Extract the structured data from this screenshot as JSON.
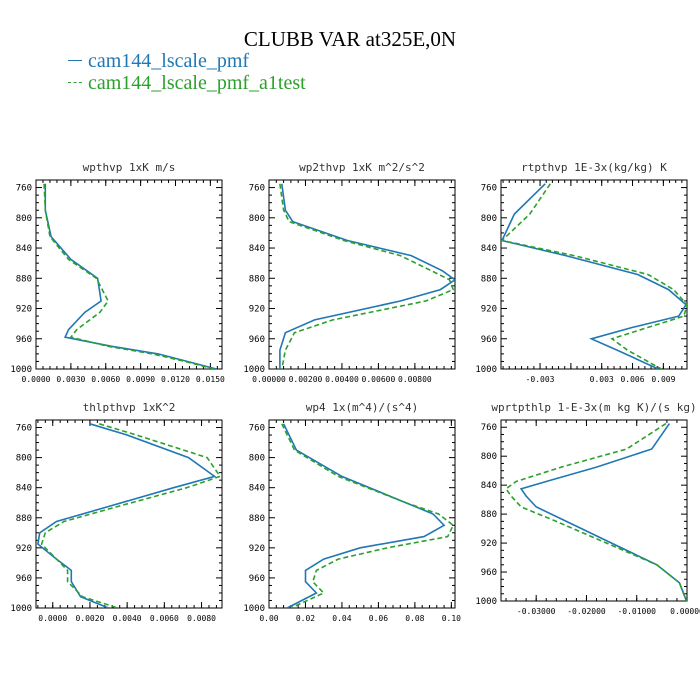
{
  "title": "CLUBB VAR at325E,0N",
  "legend": [
    {
      "label": "cam144_lscale_pmf",
      "color": "#1f77b4",
      "dash": "solid"
    },
    {
      "label": "cam144_lscale_pmf_a1test",
      "color": "#2ca02c",
      "dash": "dashed"
    }
  ],
  "chart_data": [
    {
      "type": "line",
      "title": "wpthvp  1xK m/s",
      "xlim": [
        0,
        0.016
      ],
      "ylim": [
        1000,
        750
      ],
      "xticks": [
        0,
        0.003,
        0.006,
        0.009,
        0.012,
        0.015
      ],
      "xtick_labels": [
        "0.0000",
        "0.0030",
        "0.0060",
        "0.0090",
        "0.0120",
        "0.0150"
      ],
      "xminor": 0.0006,
      "yticks": [
        760,
        800,
        840,
        880,
        920,
        960,
        1000
      ],
      "y": [
        755,
        790,
        825,
        855,
        880,
        910,
        925,
        948,
        958,
        970,
        980,
        990,
        1000
      ],
      "series": [
        {
          "name": "cam144_lscale_pmf",
          "values": [
            0.0008,
            0.0008,
            0.0013,
            0.003,
            0.0053,
            0.0056,
            0.0042,
            0.0028,
            0.0025,
            0.0065,
            0.0105,
            0.013,
            0.0155
          ]
        },
        {
          "name": "cam144_lscale_pmf_a1test",
          "values": [
            0.0007,
            0.0008,
            0.0012,
            0.0028,
            0.0052,
            0.0062,
            0.0055,
            0.0035,
            0.003,
            0.0062,
            0.01,
            0.0128,
            0.0153
          ]
        }
      ]
    },
    {
      "type": "line",
      "title": "wp2thvp  1xK m^2/s^2",
      "xlim": [
        0,
        0.0102
      ],
      "ylim": [
        1000,
        750
      ],
      "xticks": [
        0,
        0.002,
        0.004,
        0.006,
        0.008
      ],
      "xtick_labels": [
        "0.00000",
        "0.00200",
        "0.00400",
        "0.00600",
        "0.00800"
      ],
      "xminor": 0.0004,
      "yticks": [
        760,
        800,
        840,
        880,
        920,
        960,
        1000
      ],
      "y": [
        755,
        790,
        805,
        830,
        850,
        870,
        882,
        895,
        910,
        935,
        952,
        975,
        1000
      ],
      "series": [
        {
          "name": "cam144_lscale_pmf",
          "values": [
            0.0007,
            0.0009,
            0.0013,
            0.0043,
            0.0078,
            0.0095,
            0.0102,
            0.0094,
            0.0072,
            0.0025,
            0.0009,
            0.0006,
            0.0006
          ]
        },
        {
          "name": "cam144_lscale_pmf_a1test",
          "values": [
            0.0006,
            0.0008,
            0.0011,
            0.0041,
            0.0072,
            0.0089,
            0.0099,
            0.0101,
            0.0086,
            0.0035,
            0.0014,
            0.0009,
            0.0007
          ]
        }
      ]
    },
    {
      "type": "line",
      "title": "rtpthvp  1E-3x(kg/kg) K",
      "xlim": [
        -0.0068,
        0.0113
      ],
      "ylim": [
        1000,
        750
      ],
      "xticks": [
        -0.003,
        0,
        0.003,
        0.006,
        0.009
      ],
      "xtick_labels": [
        "-0.003",
        "0.003",
        "0.006",
        "0.009"
      ],
      "xtick_values_shown": [
        -0.003,
        0.003,
        0.006,
        0.009
      ],
      "xminor": 0.0006,
      "yticks": [
        760,
        800,
        840,
        880,
        920,
        960,
        1000
      ],
      "y": [
        755,
        795,
        830,
        850,
        875,
        895,
        915,
        930,
        945,
        960,
        975,
        1000
      ],
      "series": [
        {
          "name": "cam144_lscale_pmf",
          "values": [
            -0.0025,
            -0.0055,
            -0.0067,
            -0.0005,
            0.0065,
            0.0095,
            0.0112,
            0.0105,
            0.006,
            0.002,
            0.0045,
            0.0085
          ]
        },
        {
          "name": "cam144_lscale_pmf_a1test",
          "values": [
            -0.002,
            -0.004,
            -0.0067,
            0.0003,
            0.0075,
            0.01,
            0.0113,
            0.011,
            0.0075,
            0.004,
            0.0055,
            0.0088
          ]
        }
      ]
    },
    {
      "type": "line",
      "title": "thlpthvp  1xK^2",
      "xlim": [
        -0.0009,
        0.0091
      ],
      "ylim": [
        1000,
        750
      ],
      "xticks": [
        0,
        0.002,
        0.004,
        0.006,
        0.008
      ],
      "xtick_labels": [
        "0.0000",
        "0.0020",
        "0.0040",
        "0.0060",
        "0.0080"
      ],
      "xminor": 0.0004,
      "yticks": [
        760,
        800,
        840,
        880,
        920,
        960,
        1000
      ],
      "y": [
        755,
        770,
        800,
        825,
        840,
        865,
        885,
        900,
        915,
        935,
        950,
        965,
        985,
        1000
      ],
      "series": [
        {
          "name": "cam144_lscale_pmf",
          "values": [
            0.002,
            0.004,
            0.0073,
            0.0087,
            0.0065,
            0.003,
            0.0002,
            -0.0007,
            -0.0008,
            0.0002,
            0.001,
            0.001,
            0.0015,
            0.003
          ]
        },
        {
          "name": "cam144_lscale_pmf_a1test",
          "values": [
            0.0025,
            0.0045,
            0.0083,
            0.009,
            0.0072,
            0.0035,
            0.0006,
            -0.0004,
            -0.0006,
            0.0002,
            0.0008,
            0.0008,
            0.0016,
            0.0035
          ]
        }
      ]
    },
    {
      "type": "line",
      "title": "wp4  1x(m^4)/(s^4)",
      "xlim": [
        0,
        0.102
      ],
      "ylim": [
        1000,
        750
      ],
      "xticks": [
        0,
        0.02,
        0.04,
        0.06,
        0.08,
        0.1
      ],
      "xtick_labels": [
        "0.00",
        "0.02",
        "0.04",
        "0.06",
        "0.08",
        "0.10"
      ],
      "xminor": 0.004,
      "yticks": [
        760,
        800,
        840,
        880,
        920,
        960,
        1000
      ],
      "y": [
        755,
        790,
        825,
        860,
        875,
        890,
        905,
        920,
        935,
        950,
        965,
        980,
        1000
      ],
      "series": [
        {
          "name": "cam144_lscale_pmf",
          "values": [
            0.008,
            0.015,
            0.04,
            0.075,
            0.09,
            0.096,
            0.085,
            0.05,
            0.03,
            0.02,
            0.02,
            0.026,
            0.01
          ]
        },
        {
          "name": "cam144_lscale_pmf_a1test",
          "values": [
            0.007,
            0.014,
            0.038,
            0.075,
            0.093,
            0.101,
            0.098,
            0.065,
            0.038,
            0.026,
            0.024,
            0.03,
            0.012
          ]
        }
      ]
    },
    {
      "type": "line",
      "title": "wprtpthlp  1-E-3x(m kg K)/(s kg)",
      "xlim": [
        -0.037,
        0
      ],
      "ylim": [
        1000,
        750
      ],
      "xticks": [
        -0.03,
        -0.02,
        -0.01,
        0
      ],
      "xtick_labels": [
        "-0.03000",
        "-0.02000",
        "-0.01000",
        "0.00000"
      ],
      "xminor": 0.002,
      "yticks": [
        760,
        800,
        840,
        880,
        920,
        960,
        1000
      ],
      "y": [
        755,
        790,
        815,
        835,
        845,
        855,
        870,
        890,
        920,
        950,
        975,
        1000
      ],
      "series": [
        {
          "name": "cam144_lscale_pmf",
          "values": [
            -0.0035,
            -0.007,
            -0.018,
            -0.028,
            -0.033,
            -0.032,
            -0.03,
            -0.024,
            -0.015,
            -0.006,
            -0.0015,
            -0.0001
          ]
        },
        {
          "name": "cam144_lscale_pmf_a1test",
          "values": [
            -0.0042,
            -0.012,
            -0.025,
            -0.034,
            -0.036,
            -0.035,
            -0.033,
            -0.026,
            -0.016,
            -0.006,
            -0.0015,
            -0.0001
          ]
        }
      ]
    }
  ]
}
